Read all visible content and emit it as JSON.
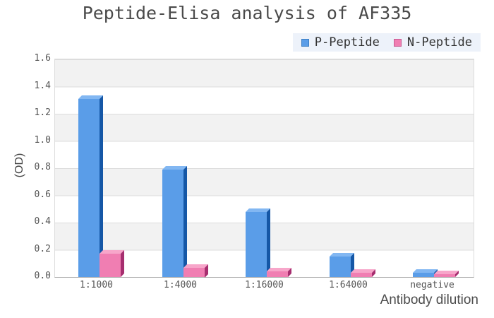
{
  "title": "Peptide-Elisa analysis of AF335",
  "legend": {
    "items": [
      {
        "label": "P-Peptide",
        "color": "#5a9de8",
        "border": "#3d7fc4"
      },
      {
        "label": "N-Peptide",
        "color": "#f07eb2",
        "border": "#c75b92"
      }
    ],
    "background": "#edf2fa"
  },
  "axes": {
    "y_label": "(OD)",
    "x_label": "Antibody dilution",
    "y_ticks": [
      "1.6",
      "1.4",
      "1.2",
      "1.0",
      "0.8",
      "0.6",
      "0.4",
      "0.2",
      "0.0"
    ]
  },
  "chart_data": {
    "type": "bar",
    "title": "Peptide-Elisa analysis of AF335",
    "categories": [
      "1:1000",
      "1:4000",
      "1:16000",
      "1:64000",
      "negative"
    ],
    "series": [
      {
        "name": "P-Peptide",
        "color": "#5a9de8",
        "color_top": "#82b7f2",
        "color_side": "#1557a6",
        "values": [
          1.31,
          0.79,
          0.48,
          0.15,
          0.03
        ]
      },
      {
        "name": "N-Peptide",
        "color": "#f07eb2",
        "color_top": "#f7a6ca",
        "color_side": "#a62e6f",
        "values": [
          0.17,
          0.07,
          0.04,
          0.03,
          0.02
        ]
      }
    ],
    "xlabel": "Antibody dilution",
    "ylabel": "(OD)",
    "ylim": [
      0,
      1.6
    ],
    "ytick_step": 0.2,
    "grid": true,
    "plot_bands": {
      "colors": [
        "#f2f2f2",
        "#ffffff"
      ],
      "gridline_color": "#dcdcdc"
    },
    "legend_position": "top-right",
    "style": "3d oblique bars"
  }
}
